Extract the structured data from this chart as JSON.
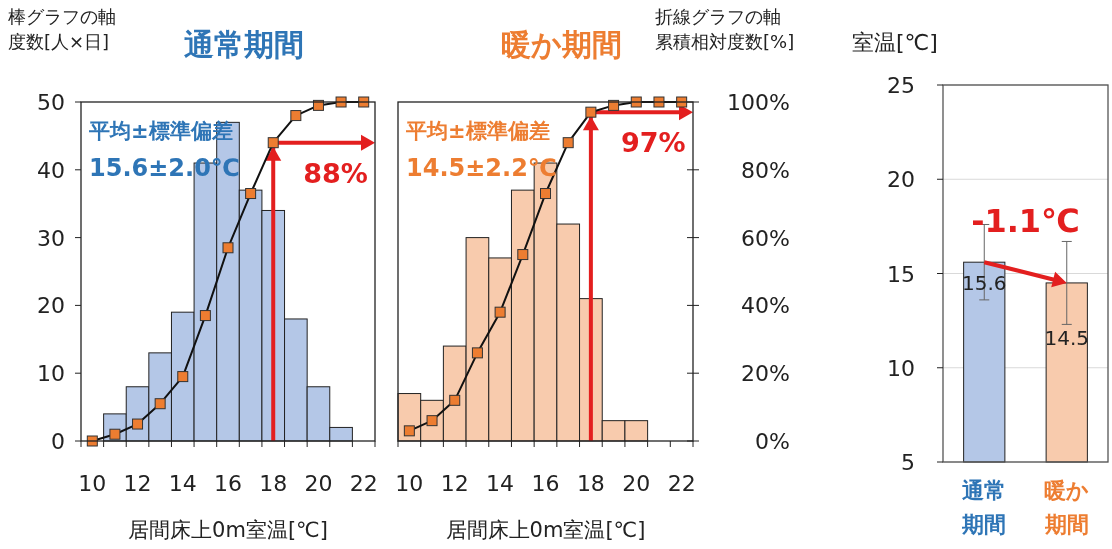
{
  "chart_data": [
    {
      "type": "bar",
      "title": "通常期間",
      "xlabel": "居間床上0m室温[℃]",
      "ylabel": "棒グラフの軸度数[人×日]",
      "categories": [
        "10",
        null,
        "12",
        null,
        "14",
        null,
        "16",
        null,
        "18",
        null,
        "20",
        null,
        "22"
      ],
      "series": [
        {
          "color": "#b4c7e7",
          "values": [
            0,
            4,
            8,
            13,
            19,
            41,
            47,
            37,
            34,
            18,
            8,
            2,
            0
          ]
        },
        {
          "type": "line",
          "axis": "y2",
          "color": "#ed7d31",
          "values": [
            0,
            2,
            5,
            11,
            19,
            37,
            57,
            73,
            88,
            96,
            99,
            100,
            100
          ]
        }
      ],
      "ylim": [
        0,
        50
      ],
      "yticks": [
        0,
        10,
        20,
        30,
        40,
        50
      ],
      "y2lim": [
        0,
        100
      ],
      "tick_labels": [
        "x",
        "y"
      ],
      "marker": "square",
      "grid": false,
      "ref_lines": [
        {
          "axis": "x",
          "value": "18",
          "color": "#e31f1f"
        },
        {
          "axis": "y2",
          "value": 88,
          "label": "88%",
          "color": "#e31f1f"
        }
      ],
      "annotations": [
        "平均±標準偏差",
        "15.6±2.0℃"
      ]
    },
    {
      "type": "bar",
      "title": "暖か期間",
      "xlabel": "居間床上0m室温[℃]",
      "y2label": "折線グラフの軸累積相対度数[%]",
      "categories": [
        "10",
        null,
        "12",
        null,
        "14",
        null,
        "16",
        null,
        "18",
        null,
        "20",
        null,
        "22"
      ],
      "series": [
        {
          "color": "#f8cbad",
          "values": [
            7,
            6,
            14,
            30,
            27,
            37,
            41,
            32,
            21,
            3,
            3,
            0,
            0
          ]
        },
        {
          "type": "line",
          "axis": "y2",
          "color": "#ed7d31",
          "values": [
            3,
            6,
            12,
            26,
            38,
            55,
            73,
            88,
            97,
            99,
            100,
            100,
            100
          ]
        }
      ],
      "ylim": [
        0,
        50
      ],
      "y2lim": [
        0,
        100
      ],
      "y2ticks": [
        {
          "value": 0,
          "label": "0%"
        },
        {
          "value": 20,
          "label": "20%"
        },
        {
          "value": 40,
          "label": "40%"
        },
        {
          "value": 60,
          "label": "60%"
        },
        {
          "value": 80,
          "label": "80%"
        },
        {
          "value": 100,
          "label": "100%"
        }
      ],
      "tick_labels": [
        "x",
        "y2"
      ],
      "marker": "square",
      "grid": false,
      "ref_lines": [
        {
          "axis": "x",
          "value": "18",
          "color": "#e31f1f"
        },
        {
          "axis": "y2",
          "value": 97,
          "label": "97%",
          "color": "#e31f1f"
        }
      ],
      "annotations": [
        "平均±標準偏差",
        "14.5±2.2℃"
      ]
    },
    {
      "type": "bar",
      "ylabel": "室温[℃]",
      "categories": [
        "通常期間",
        "暖か期間"
      ],
      "values": [
        15.6,
        14.5
      ],
      "colors": [
        "#b4c7e7",
        "#f8cbad"
      ],
      "errors": [
        2.0,
        2.2
      ],
      "ylim": [
        5,
        25
      ],
      "yticks": [
        5,
        10,
        15,
        20,
        25
      ],
      "grid": "y",
      "data_labels": true,
      "annotations": [
        "-1.1℃"
      ]
    }
  ]
}
